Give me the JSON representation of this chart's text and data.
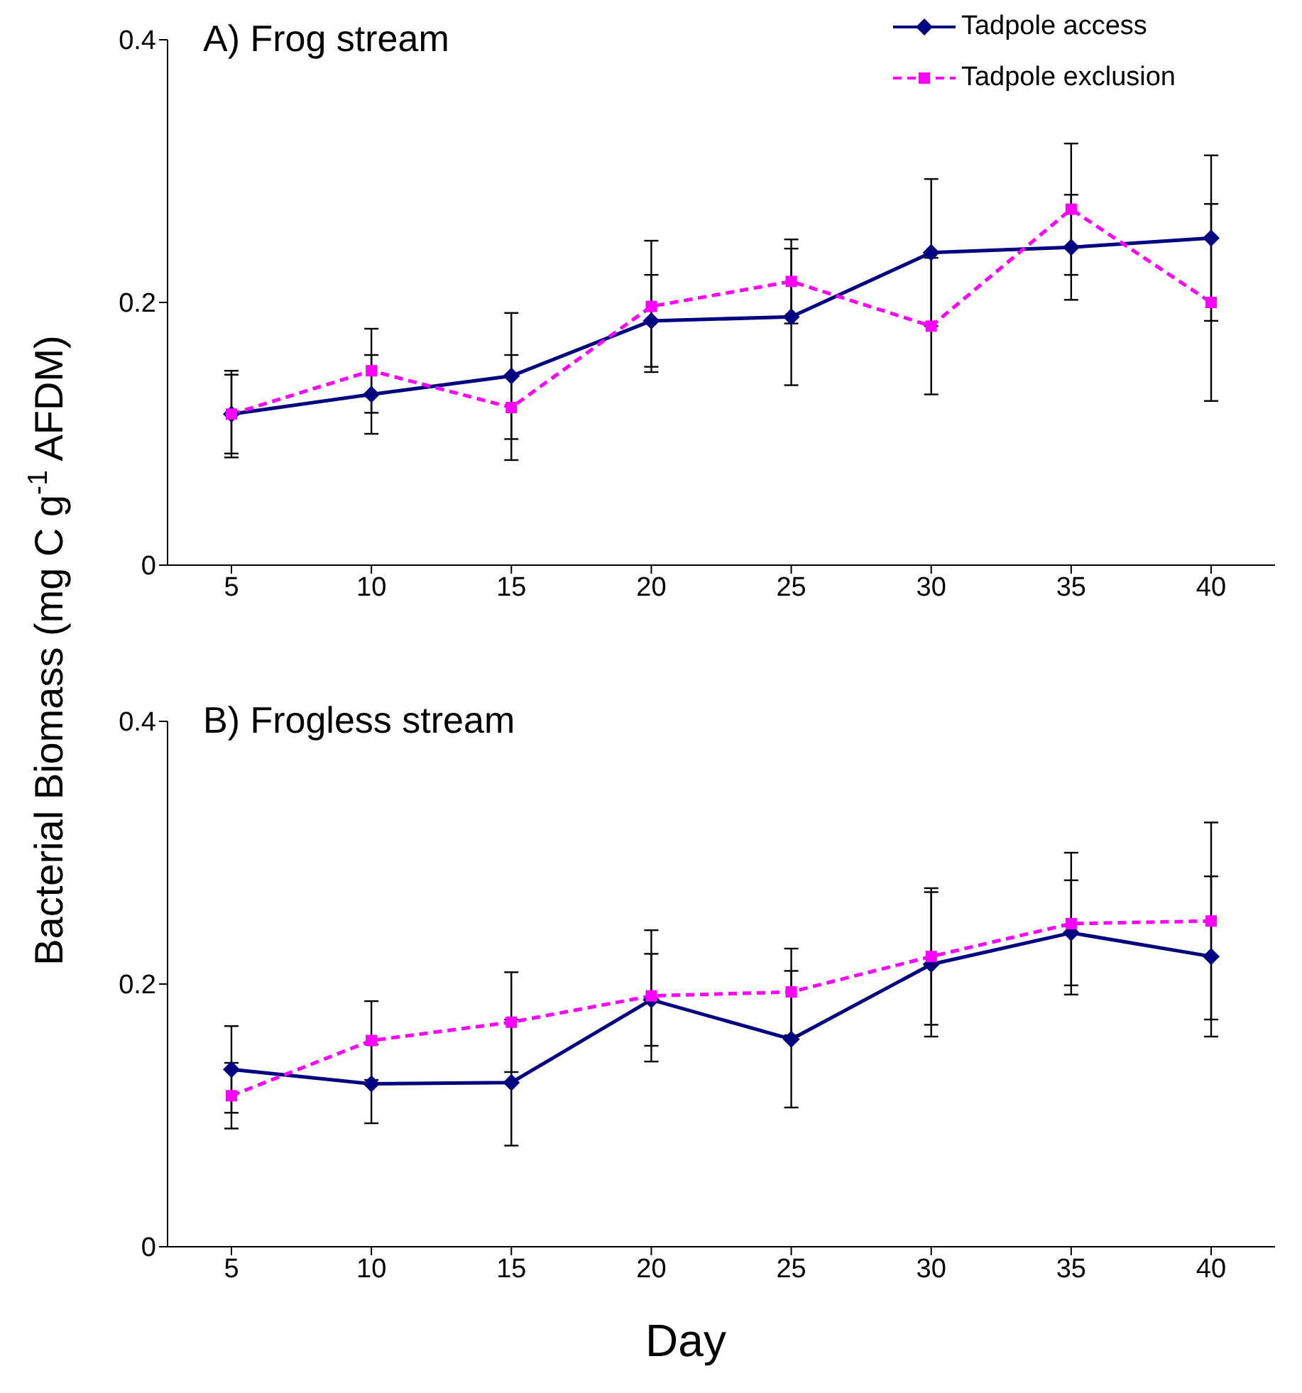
{
  "chart_data": [
    {
      "type": "line",
      "title": "A) Frog stream",
      "ylabel": "Bacterial Biomass (mg C g$^{-1}$ AFDM)",
      "categories": [
        "5",
        "10",
        "15",
        "20",
        "25",
        "30",
        "35",
        "40"
      ],
      "ylim": [
        0,
        0.4
      ],
      "yticks": [
        0,
        0.2,
        0.4
      ],
      "grid": false,
      "legend": "top right",
      "series": [
        {
          "name": "Tadpole access",
          "color": "#000080",
          "marker": "diamond",
          "line_style": "solid",
          "values": [
            0.115,
            0.13,
            0.144,
            0.186,
            0.189,
            0.238,
            0.242,
            0.249
          ],
          "errors": [
            0.03,
            0.03,
            0.048,
            0.035,
            0.052,
            0.056,
            0.04,
            0.063
          ]
        },
        {
          "name": "Tadpole exclusion",
          "color": "#ff00ff",
          "marker": "square",
          "line_style": "dashed",
          "values": [
            0.115,
            0.148,
            0.12,
            0.197,
            0.216,
            0.182,
            0.271,
            0.2
          ],
          "errors": [
            0.033,
            0.032,
            0.04,
            0.05,
            0.032,
            0.052,
            0.05,
            0.075
          ]
        }
      ]
    },
    {
      "type": "line",
      "title": "B) Frogless stream",
      "xlabel": "Day",
      "categories": [
        "5",
        "10",
        "15",
        "20",
        "25",
        "30",
        "35",
        "40"
      ],
      "ylim": [
        0,
        0.4
      ],
      "yticks": [
        0,
        0.2,
        0.4
      ],
      "grid": false,
      "legend": false,
      "series": [
        {
          "color": "#000080",
          "marker": "diamond",
          "line_style": "solid",
          "values": [
            0.135,
            0.124,
            0.125,
            0.188,
            0.158,
            0.215,
            0.239,
            0.221
          ],
          "errors": [
            0.033,
            0.03,
            0.048,
            0.035,
            0.052,
            0.055,
            0.04,
            0.061
          ]
        },
        {
          "color": "#ff00ff",
          "marker": "square",
          "line_style": "dashed",
          "values": [
            0.115,
            0.157,
            0.171,
            0.191,
            0.194,
            0.221,
            0.246,
            0.248
          ],
          "errors": [
            0.025,
            0.03,
            0.038,
            0.05,
            0.033,
            0.052,
            0.054,
            0.075
          ]
        }
      ]
    }
  ]
}
